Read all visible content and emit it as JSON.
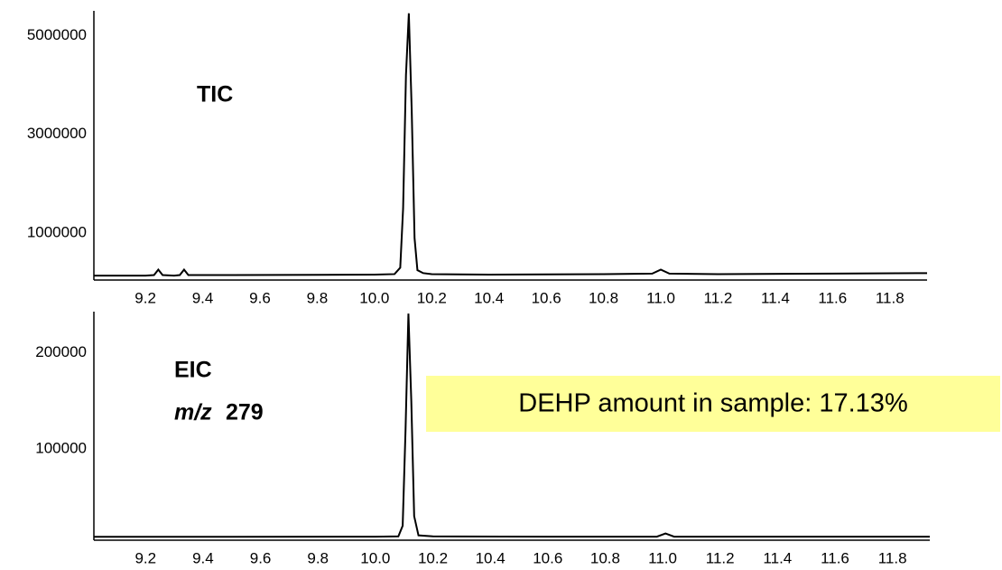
{
  "chart_data": [
    {
      "type": "line",
      "annotations": [
        "TIC"
      ],
      "x": [
        9.02,
        9.2,
        9.23,
        9.245,
        9.26,
        9.3,
        9.32,
        9.335,
        9.35,
        9.5,
        9.8,
        10.0,
        10.07,
        10.09,
        10.1,
        10.11,
        10.12,
        10.13,
        10.14,
        10.15,
        10.17,
        10.2,
        10.4,
        10.8,
        10.97,
        11.0,
        11.03,
        11.2,
        11.6,
        11.93
      ],
      "series": [
        {
          "color": "#000000",
          "values": [
            140000,
            140000,
            150000,
            260000,
            150000,
            140000,
            150000,
            260000,
            150000,
            150000,
            155000,
            160000,
            170000,
            300000,
            1500000,
            4200000,
            5450000,
            3500000,
            900000,
            250000,
            190000,
            170000,
            160000,
            170000,
            180000,
            260000,
            180000,
            170000,
            180000,
            190000
          ]
        }
      ],
      "xlim": [
        9.02,
        11.93
      ],
      "xticks": [
        9.2,
        9.4,
        9.6,
        9.8,
        {
          "value": 10,
          "label": "10.0"
        },
        10.2,
        10.4,
        10.6,
        10.8,
        {
          "value": 11,
          "label": "11.0"
        },
        11.2,
        11.4,
        11.6,
        11.8
      ],
      "ylim": [
        50000,
        5500000
      ],
      "yticks": [
        1000000,
        3000000,
        5000000
      ],
      "grid": false
    },
    {
      "type": "line",
      "annotations": [
        "EIC",
        "m/z",
        "279",
        "DEHP amount in sample: 17.13%"
      ],
      "x": [
        9.02,
        9.5,
        10.0,
        10.08,
        10.095,
        10.105,
        10.115,
        10.125,
        10.135,
        10.15,
        10.2,
        10.6,
        10.98,
        11.01,
        11.04,
        11.5,
        11.93
      ],
      "series": [
        {
          "color": "#000000",
          "values": [
            8500,
            8500,
            8700,
            9000,
            20000,
            120000,
            241000,
            150000,
            30000,
            10000,
            9000,
            8600,
            8700,
            12000,
            8700,
            8600,
            8600
          ]
        }
      ],
      "xlim": [
        9.02,
        11.93
      ],
      "xticks": [
        9.2,
        9.4,
        9.6,
        9.8,
        {
          "value": 10,
          "label": "10.0"
        },
        10.2,
        10.4,
        10.6,
        10.8,
        {
          "value": 11,
          "label": "11.0"
        },
        11.2,
        11.4,
        11.6,
        11.8
      ],
      "ylim": [
        5000,
        243000
      ],
      "yticks": [
        100000,
        200000
      ],
      "grid": false
    }
  ]
}
